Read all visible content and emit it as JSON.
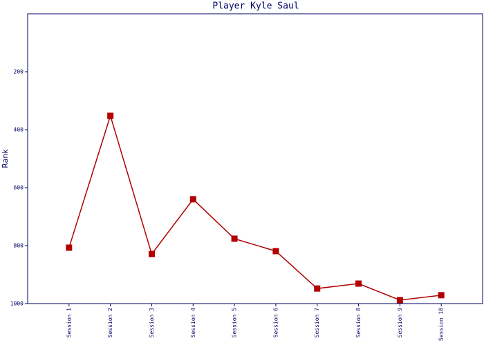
{
  "chart_data": {
    "type": "line",
    "title": "Player Kyle Saul",
    "y_label": "Rank",
    "categories": [
      "Session 1",
      "Session 2",
      "Session 3",
      "Session 4",
      "Session 5",
      "Session 6",
      "Session 7",
      "Session 8",
      "Session 9",
      "Session 10"
    ],
    "series": [
      {
        "name": "Rank",
        "color": "#b00000",
        "values": [
          807,
          352,
          829,
          640,
          776,
          819,
          948,
          931,
          988,
          971
        ]
      }
    ],
    "ylim": [
      1000,
      0
    ],
    "yticks": [
      200,
      400,
      600,
      800,
      1000
    ],
    "grid": false
  }
}
